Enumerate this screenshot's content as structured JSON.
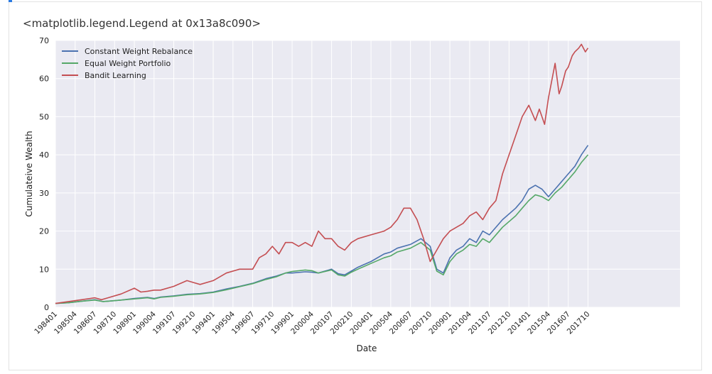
{
  "output_text": "<matplotlib.legend.Legend at 0x13a8c090>",
  "chart_data": {
    "type": "line",
    "title": "",
    "xlabel": "Date",
    "ylabel": "Cumulateive Wealth",
    "ylim": [
      0,
      70
    ],
    "yticks": [
      0,
      10,
      20,
      30,
      40,
      50,
      60,
      70
    ],
    "grid": true,
    "legend_position": "top-left",
    "x_index_range": [
      0,
      475
    ],
    "xtick_labels": [
      "198401",
      "198504",
      "198607",
      "198710",
      "198901",
      "199004",
      "199107",
      "199210",
      "199401",
      "199504",
      "199607",
      "199710",
      "199901",
      "200004",
      "200107",
      "200210",
      "200401",
      "200504",
      "200607",
      "200710",
      "200901",
      "201004",
      "201107",
      "201210",
      "201401",
      "201504",
      "201607",
      "201710"
    ],
    "xtick_indices": [
      0,
      15,
      30,
      45,
      60,
      75,
      90,
      105,
      120,
      135,
      150,
      165,
      180,
      195,
      210,
      225,
      240,
      255,
      270,
      285,
      300,
      315,
      330,
      345,
      360,
      375,
      390,
      405
    ],
    "series": [
      {
        "name": "Constant Weight Rebalance",
        "color": "#4c72b0",
        "x": [
          0,
          10,
          20,
          30,
          36,
          40,
          50,
          60,
          70,
          75,
          80,
          90,
          100,
          110,
          120,
          130,
          140,
          150,
          160,
          168,
          175,
          180,
          190,
          195,
          200,
          210,
          215,
          220,
          225,
          230,
          240,
          250,
          255,
          260,
          270,
          278,
          285,
          290,
          295,
          300,
          305,
          310,
          315,
          320,
          325,
          330,
          340,
          350,
          355,
          360,
          365,
          370,
          375,
          380,
          385,
          390,
          395,
          400,
          405
        ],
        "values": [
          1,
          1.2,
          1.6,
          2,
          1.5,
          1.6,
          1.9,
          2.3,
          2.6,
          2.3,
          2.7,
          3,
          3.4,
          3.6,
          4,
          4.8,
          5.5,
          6.3,
          7.5,
          8.2,
          9,
          9,
          9.3,
          9.2,
          9,
          10,
          8.8,
          8.5,
          9.5,
          10.5,
          12,
          14,
          14.5,
          15.5,
          16.5,
          18,
          16,
          10,
          9,
          13,
          15,
          16,
          18,
          17,
          20,
          19,
          23,
          26,
          28,
          31,
          32,
          31,
          29,
          31,
          33,
          35,
          37,
          40,
          42.5
        ]
      },
      {
        "name": "Equal Weight Portfolio",
        "color": "#55a868",
        "x": [
          0,
          10,
          20,
          30,
          36,
          40,
          50,
          60,
          70,
          75,
          80,
          90,
          100,
          110,
          120,
          130,
          140,
          150,
          160,
          168,
          175,
          180,
          190,
          195,
          200,
          210,
          215,
          220,
          225,
          230,
          240,
          250,
          255,
          260,
          270,
          278,
          285,
          290,
          295,
          300,
          305,
          310,
          315,
          320,
          325,
          330,
          340,
          350,
          355,
          360,
          365,
          370,
          375,
          380,
          385,
          390,
          395,
          400,
          405
        ],
        "values": [
          1,
          1.2,
          1.6,
          1.9,
          1.5,
          1.6,
          1.9,
          2.2,
          2.5,
          2.2,
          2.6,
          2.9,
          3.3,
          3.5,
          3.9,
          4.6,
          5.4,
          6.2,
          7.3,
          8,
          9,
          9.4,
          9.8,
          9.6,
          9,
          9.8,
          8.5,
          8.2,
          9.2,
          10,
          11.5,
          13,
          13.5,
          14.5,
          15.5,
          17,
          15,
          9.5,
          8.5,
          12,
          14,
          15,
          16.5,
          16,
          18,
          17,
          21,
          24,
          26,
          28,
          29.5,
          29,
          28,
          30,
          31.5,
          33.5,
          35.5,
          38,
          40
        ]
      },
      {
        "name": "Bandit Learning",
        "color": "#c44e52",
        "x": [
          0,
          10,
          20,
          30,
          35,
          40,
          50,
          60,
          65,
          70,
          75,
          80,
          90,
          100,
          105,
          110,
          120,
          130,
          140,
          150,
          155,
          160,
          165,
          170,
          175,
          180,
          185,
          190,
          195,
          200,
          205,
          210,
          215,
          220,
          225,
          230,
          240,
          250,
          255,
          260,
          265,
          270,
          275,
          280,
          285,
          290,
          295,
          300,
          305,
          310,
          315,
          320,
          325,
          330,
          335,
          340,
          345,
          350,
          355,
          360,
          365,
          368,
          372,
          375,
          380,
          383,
          385,
          388,
          390,
          393,
          395,
          398,
          400,
          403,
          405
        ],
        "values": [
          1,
          1.5,
          2,
          2.5,
          2,
          2.5,
          3.5,
          5,
          4,
          4.2,
          4.5,
          4.5,
          5.5,
          7,
          6.5,
          6,
          7,
          9,
          10,
          10,
          13,
          14,
          16,
          14,
          17,
          17,
          16,
          17,
          16,
          20,
          18,
          18,
          16,
          15,
          17,
          18,
          19,
          20,
          21,
          23,
          26,
          26,
          23,
          18,
          12,
          15,
          18,
          20,
          21,
          22,
          24,
          25,
          23,
          26,
          28,
          35,
          40,
          45,
          50,
          53,
          49,
          52,
          48,
          55,
          64,
          56,
          58,
          62,
          63,
          66,
          67,
          68,
          69,
          67,
          68
        ]
      }
    ]
  }
}
